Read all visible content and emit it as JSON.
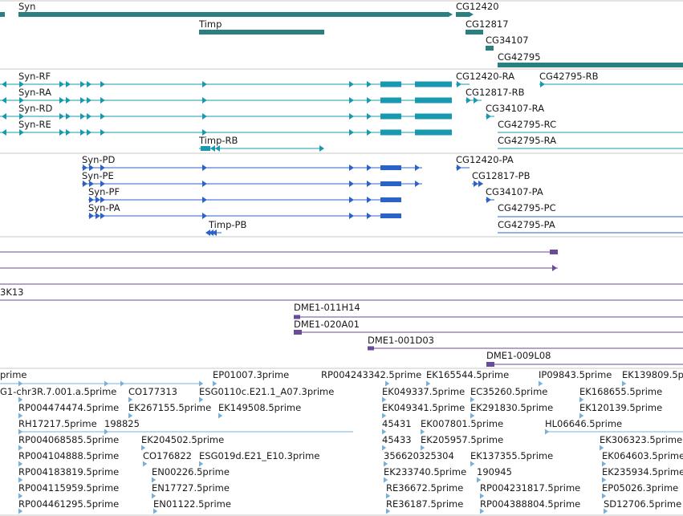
{
  "colors": {
    "gene": "#2a8080",
    "transcript": "#1899b0",
    "cds": "#2a62c8",
    "dna_clone": "#6a4a9a",
    "est": "#78b0d8",
    "divider": "#c8c8c8"
  },
  "gene_track": {
    "labels": [
      "Syn",
      "Timp",
      "CG12420",
      "CG12817",
      "CG34107",
      "CG42795"
    ]
  },
  "transcript_track": {
    "labels": [
      "Syn-RF",
      "Syn-RA",
      "Syn-RD",
      "Syn-RE",
      "Timp-RB",
      "CG12420-RA",
      "CG42795-RB",
      "CG12817-RB",
      "CG34107-RA",
      "CG42795-RC",
      "CG42795-RA"
    ]
  },
  "protein_track": {
    "labels": [
      "Syn-PD",
      "Syn-PE",
      "Syn-PF",
      "Syn-PA",
      "Timp-PB",
      "CG12420-PA",
      "CG12817-PB",
      "CG34107-PA",
      "CG42795-PC",
      "CG42795-PA"
    ]
  },
  "clone_track": {
    "labels": [
      "3K13",
      "DME1-011H14",
      "DME1-020A01",
      "DME1-001D03",
      "DME1-009L08"
    ]
  },
  "est_track": {
    "labels": [
      "prime",
      "EP01007.3prime",
      "RP004243342.5prime",
      "EK165544.5prime",
      "IP09843.5prime",
      "EK139809.5p",
      "G1-chr3R.7.001.a.5prime",
      "CO177313",
      "ESG0110c.E21.1_A07.3prime",
      "EK049337.5prime",
      "EC35260.5prime",
      "EK168655.5prime",
      "RP004474474.5prime",
      "EK267155.5prime",
      "EK149508.5prime",
      "EK049341.5prime",
      "EK291830.5prime",
      "EK120139.5prime",
      "RH17217.5prime",
      "198825",
      "45431",
      "EK007801.5prime",
      "HL06646.5prime",
      "RP004068585.5prime",
      "EK204502.5prime",
      "45433",
      "EK205957.5prime",
      "EK306323.5prime",
      "RP004104888.5prime",
      "CO176822",
      "ESG019d.E21_E10.3prime",
      "356620325304",
      "EK137355.5prime",
      "EK064603.5prime",
      "RP004183819.5prime",
      "EN00226.5prime",
      "EK233740.5prime",
      "190945",
      "EK235934.5prime",
      "RP004115959.5prime",
      "EN17727.5prime",
      "RE36672.5prime",
      "RP004231817.5prime",
      "EP05026.3prime",
      "RP004461295.5prime",
      "EN01122.5prime",
      "RE36187.5prime",
      "RP004388804.5prime",
      "SD12706.5prime"
    ]
  }
}
